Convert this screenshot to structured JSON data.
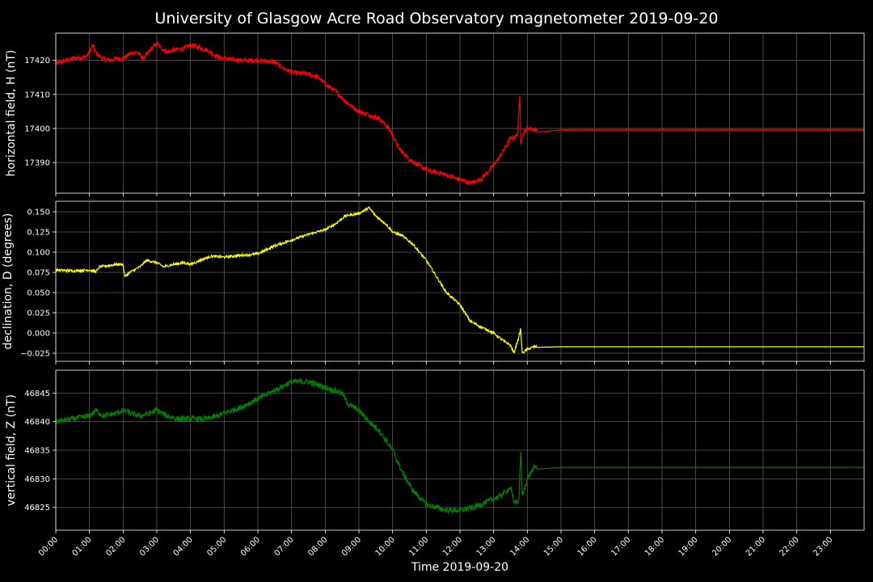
{
  "chart_data": {
    "type": "line",
    "title": "University of Glasgow Acre Road Observatory magnetometer 2019-09-20",
    "xlabel": "Time 2019-09-20",
    "x_ticks": [
      "00:00",
      "01:00",
      "02:00",
      "03:00",
      "04:00",
      "05:00",
      "06:00",
      "07:00",
      "08:00",
      "09:00",
      "10:00",
      "11:00",
      "12:00",
      "13:00",
      "14:00",
      "15:00",
      "16:00",
      "17:00",
      "18:00",
      "19:00",
      "20:00",
      "21:00",
      "22:00",
      "23:00"
    ],
    "xlim_hours": [
      0,
      24
    ],
    "grid": true,
    "background": "#000000",
    "panels": [
      {
        "ylabel": "horizontal field, H (nT)",
        "color": "#ff0000",
        "ylim": [
          17381,
          17428
        ],
        "yticks": [
          "17390",
          "17400",
          "17410",
          "17420"
        ],
        "ytick_values": [
          17390,
          17400,
          17410,
          17420
        ],
        "noise": 0.7,
        "series": {
          "name": "H",
          "x": [
            0,
            0.3,
            0.6,
            0.9,
            1.0,
            1.1,
            1.2,
            1.4,
            1.6,
            1.8,
            2.0,
            2.2,
            2.4,
            2.6,
            2.8,
            3.0,
            3.1,
            3.3,
            3.5,
            3.8,
            4.0,
            4.2,
            4.5,
            4.8,
            5.0,
            5.5,
            6.0,
            6.5,
            6.7,
            7.0,
            7.5,
            7.8,
            8.0,
            8.3,
            8.6,
            9.0,
            9.3,
            9.6,
            9.9,
            10.0,
            10.2,
            10.5,
            10.8,
            11.1,
            11.4,
            11.7,
            12.0,
            12.3,
            12.6,
            12.9,
            13.2,
            13.5,
            13.7,
            13.78,
            13.8,
            13.83,
            13.9,
            14.0,
            14.1,
            14.2,
            14.3,
            15,
            16,
            17,
            18,
            19,
            20,
            21,
            22,
            23,
            24
          ],
          "values": [
            17419,
            17420,
            17420.8,
            17421,
            17422.5,
            17424.5,
            17422,
            17420.5,
            17420,
            17420.5,
            17420.5,
            17422,
            17422.5,
            17420.5,
            17423,
            17425,
            17424,
            17422.5,
            17423,
            17423.5,
            17424.5,
            17424,
            17423,
            17421,
            17420.5,
            17420,
            17420,
            17419.5,
            17418,
            17416.5,
            17416,
            17415,
            17413,
            17411,
            17408,
            17405,
            17404,
            17403,
            17400,
            17398,
            17394,
            17391,
            17389,
            17387.5,
            17387,
            17386,
            17385,
            17384,
            17385,
            17388,
            17392,
            17397,
            17398,
            17410,
            17396,
            17397,
            17399,
            17400,
            17400,
            17399.6,
            17399.6,
            17399.6,
            17399.6,
            17399.6,
            17399.6,
            17399.6,
            17399.6,
            17399.6,
            17399.6,
            17399.6,
            17399.6
          ]
        }
      },
      {
        "ylabel": "declination, D (degrees)",
        "color": "#ffff00",
        "ylim": [
          -0.035,
          0.163
        ],
        "yticks": [
          "−0.025",
          "0.000",
          "0.025",
          "0.050",
          "0.075",
          "0.100",
          "0.125",
          "0.150"
        ],
        "ytick_values": [
          -0.025,
          0,
          0.025,
          0.05,
          0.075,
          0.1,
          0.125,
          0.15
        ],
        "noise": 0.0015,
        "series": {
          "name": "D",
          "x": [
            0,
            0.5,
            1.0,
            1.2,
            1.3,
            1.5,
            1.8,
            2.0,
            2.05,
            2.2,
            2.5,
            2.7,
            3.0,
            3.2,
            3.5,
            3.8,
            4.0,
            4.3,
            4.6,
            5.0,
            5.5,
            6.0,
            6.5,
            7.0,
            7.5,
            8.0,
            8.3,
            8.6,
            9.0,
            9.3,
            9.5,
            9.8,
            10.0,
            10.3,
            10.6,
            11.0,
            11.3,
            11.6,
            12.0,
            12.3,
            12.6,
            13.0,
            13.3,
            13.5,
            13.6,
            13.75,
            13.8,
            13.85,
            14.0,
            14.2,
            14.3,
            15,
            16,
            17,
            18,
            19,
            20,
            21,
            22,
            23,
            24
          ],
          "values": [
            0.078,
            0.077,
            0.078,
            0.076,
            0.082,
            0.083,
            0.085,
            0.085,
            0.07,
            0.075,
            0.082,
            0.09,
            0.087,
            0.082,
            0.085,
            0.087,
            0.085,
            0.09,
            0.095,
            0.094,
            0.096,
            0.098,
            0.108,
            0.115,
            0.122,
            0.128,
            0.135,
            0.145,
            0.148,
            0.155,
            0.145,
            0.135,
            0.125,
            0.12,
            0.11,
            0.09,
            0.07,
            0.05,
            0.035,
            0.015,
            0.008,
            0.0,
            -0.01,
            -0.015,
            -0.025,
            -0.005,
            0.005,
            -0.025,
            -0.02,
            -0.017,
            -0.017,
            -0.017,
            -0.017,
            -0.017,
            -0.017,
            -0.017,
            -0.017,
            -0.017,
            -0.017,
            -0.017,
            -0.017
          ]
        }
      },
      {
        "ylabel": "vertical field, Z (nT)",
        "color": "#008000",
        "ylim": [
          46821,
          46849
        ],
        "yticks": [
          "46825",
          "46830",
          "46835",
          "46840",
          "46845"
        ],
        "ytick_values": [
          46825,
          46830,
          46835,
          46840,
          46845
        ],
        "noise": 0.5,
        "series": {
          "name": "Z",
          "x": [
            0,
            0.5,
            1.0,
            1.2,
            1.4,
            1.8,
            2.0,
            2.2,
            2.5,
            2.8,
            3.0,
            3.3,
            3.6,
            4.0,
            4.5,
            4.8,
            5.0,
            5.5,
            6.0,
            6.5,
            7.0,
            7.5,
            8.0,
            8.5,
            8.7,
            9.0,
            9.3,
            9.6,
            10.0,
            10.3,
            10.6,
            11.0,
            11.3,
            11.6,
            12.0,
            12.4,
            12.8,
            13.2,
            13.5,
            13.6,
            13.75,
            13.8,
            13.85,
            14.0,
            14.2,
            14.3,
            15,
            16,
            17,
            18,
            19,
            20,
            21,
            22,
            23,
            24
          ],
          "values": [
            46840,
            46840.5,
            46841,
            46842,
            46841,
            46841.5,
            46842,
            46841.5,
            46841,
            46841.5,
            46842,
            46841,
            46840.5,
            46840.5,
            46840.5,
            46841,
            46841.5,
            46842.5,
            46844,
            46845.5,
            46847,
            46847,
            46846,
            46845,
            46843,
            46842,
            46840,
            46838.5,
            46835,
            46831,
            46828,
            46825.5,
            46825,
            46824.5,
            46824.5,
            46825,
            46826,
            46827,
            46828.5,
            46826,
            46826,
            46835,
            46827,
            46830,
            46832,
            46832,
            46832,
            46832,
            46832,
            46832,
            46832,
            46832,
            46832,
            46832,
            46832,
            46832
          ]
        }
      }
    ]
  }
}
